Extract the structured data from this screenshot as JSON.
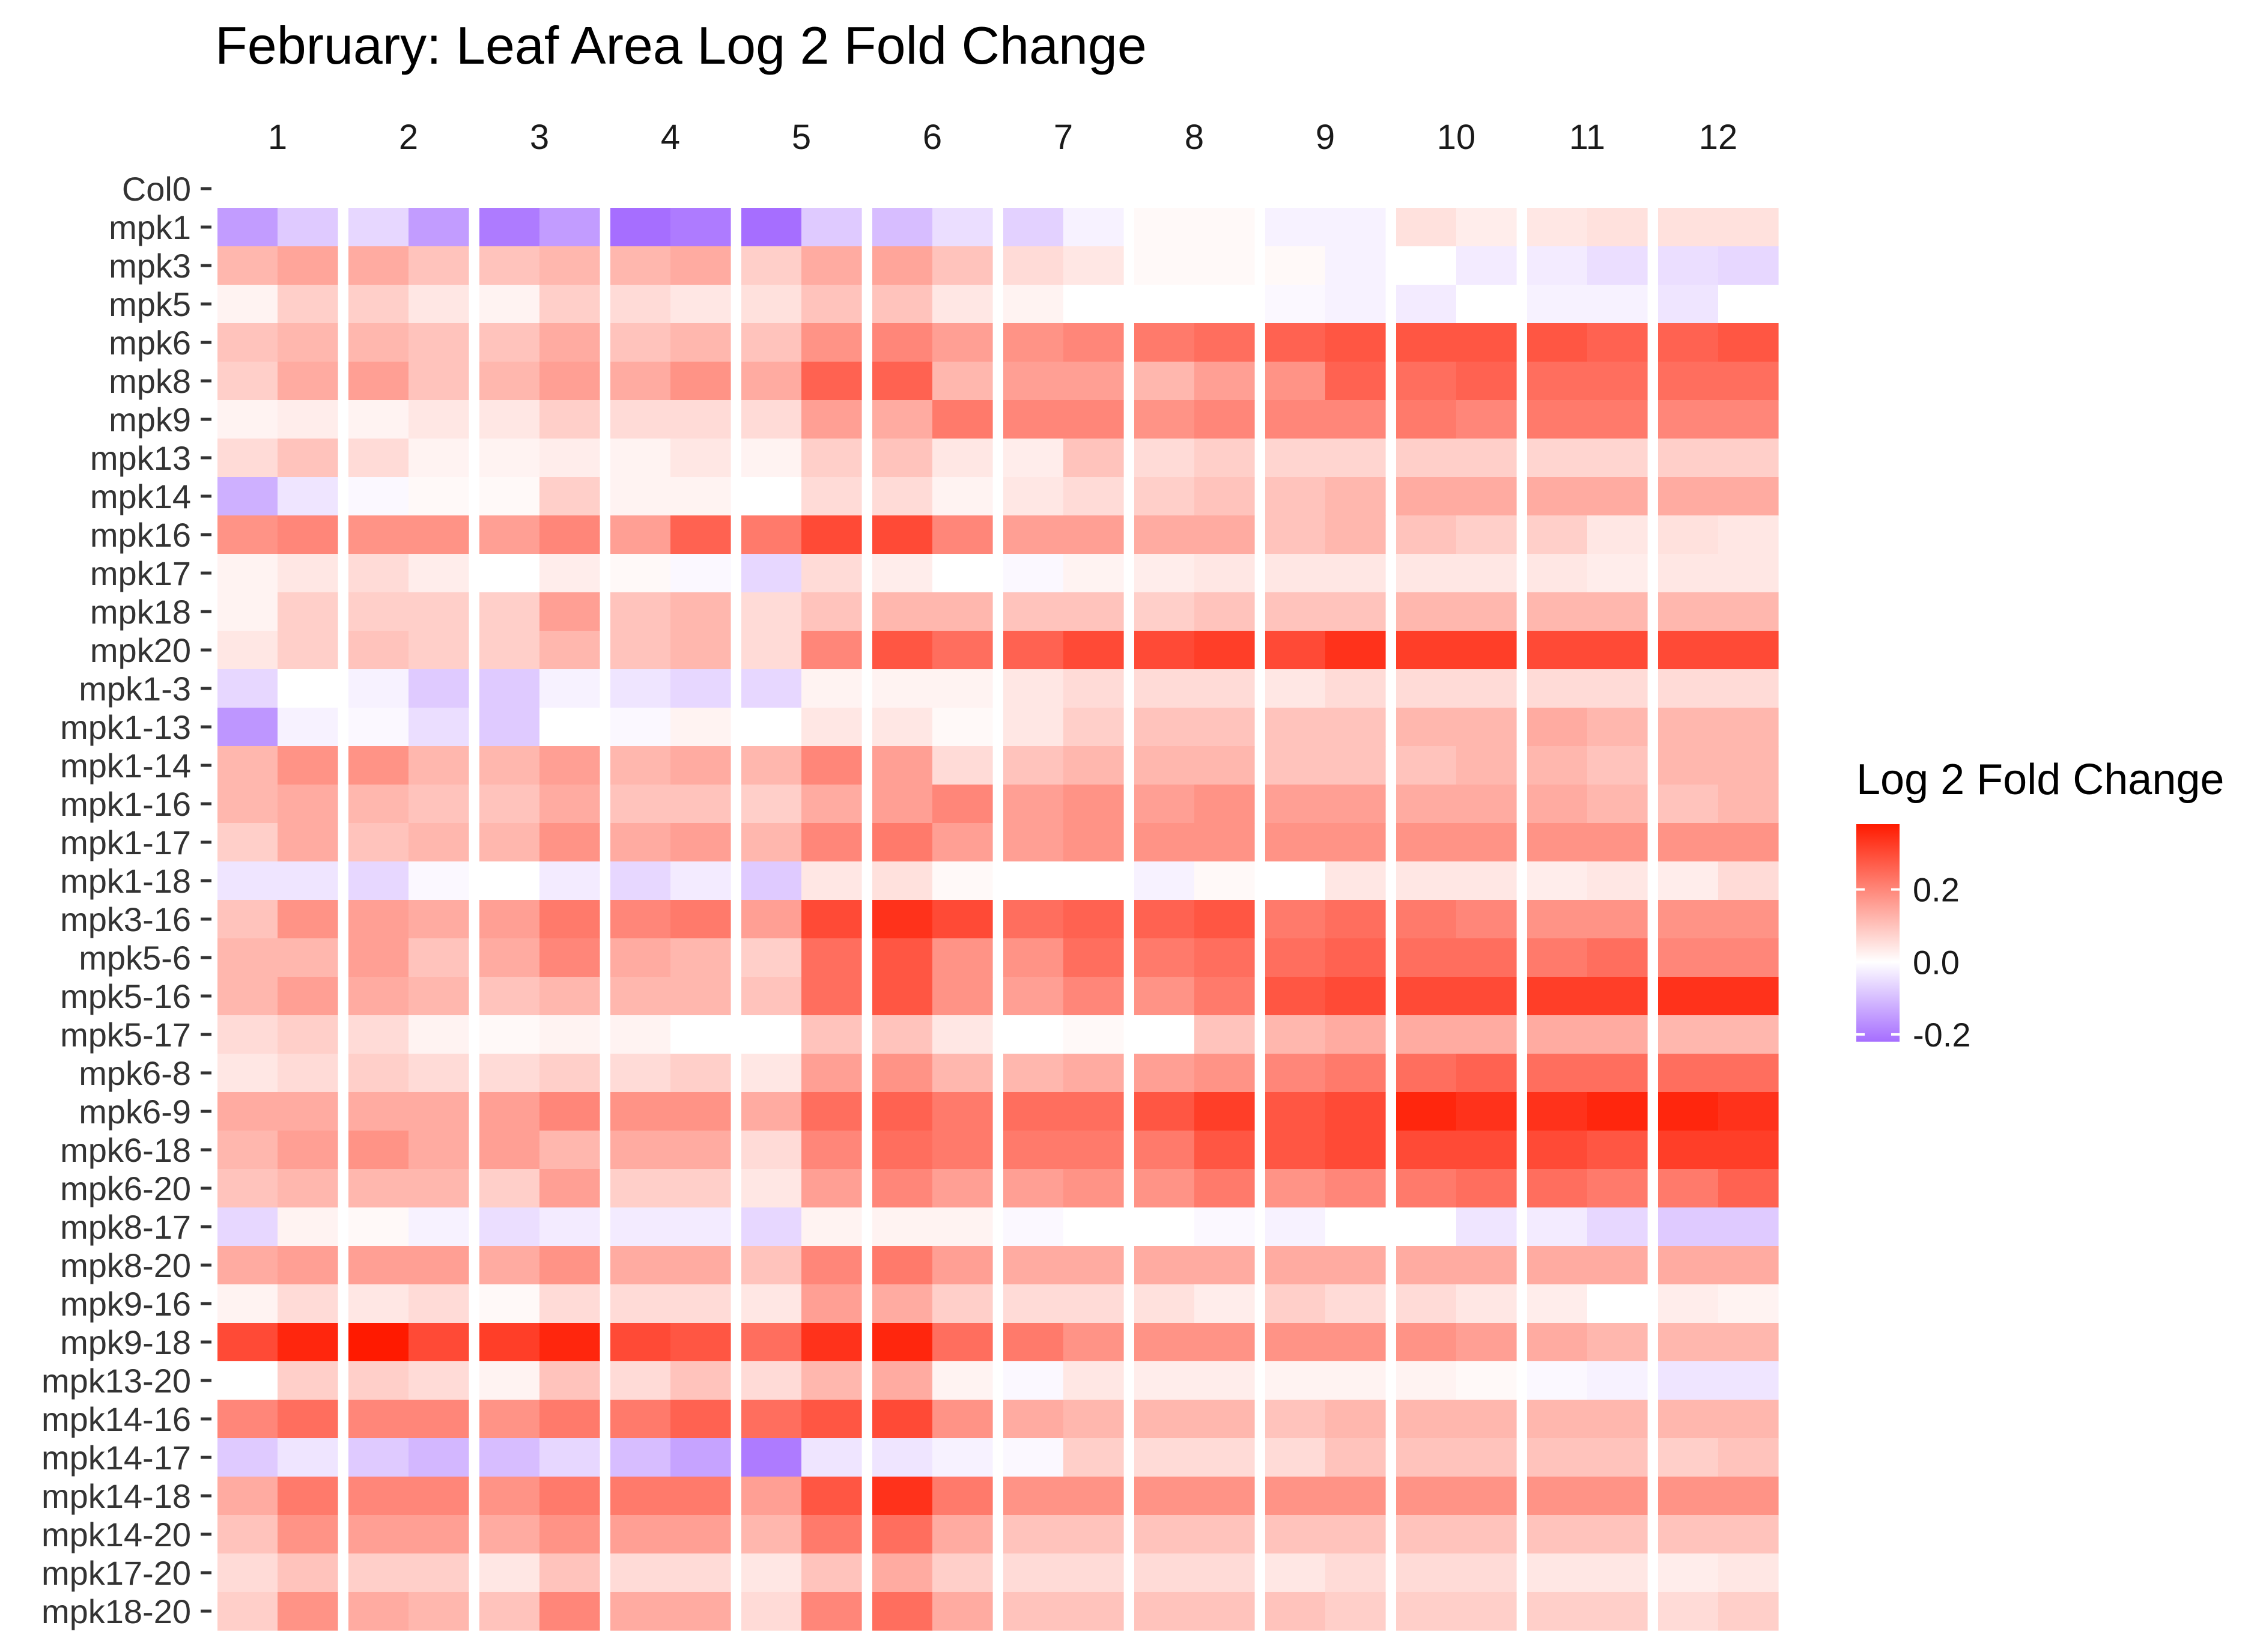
{
  "chart_data": {
    "type": "heatmap",
    "title": "February: Leaf Area Log 2 Fold Change",
    "columns": [
      "1",
      "2",
      "3",
      "4",
      "5",
      "6",
      "7",
      "8",
      "9",
      "10",
      "11",
      "12"
    ],
    "subcolumns_per_column": 2,
    "rows": [
      "Col0",
      "mpk1",
      "mpk3",
      "mpk5",
      "mpk6",
      "mpk8",
      "mpk9",
      "mpk13",
      "mpk14",
      "mpk16",
      "mpk17",
      "mpk18",
      "mpk20",
      "mpk1-3",
      "mpk1-13",
      "mpk1-14",
      "mpk1-16",
      "mpk1-17",
      "mpk1-18",
      "mpk3-16",
      "mpk5-6",
      "mpk5-16",
      "mpk5-17",
      "mpk6-8",
      "mpk6-9",
      "mpk6-18",
      "mpk6-20",
      "mpk8-17",
      "mpk8-20",
      "mpk9-16",
      "mpk9-18",
      "mpk13-20",
      "mpk14-16",
      "mpk14-17",
      "mpk14-18",
      "mpk14-20",
      "mpk17-20",
      "mpk18-20"
    ],
    "values": [
      [
        null,
        null,
        null,
        null,
        null,
        null,
        null,
        null,
        null,
        null,
        null,
        null,
        null,
        null,
        null,
        null,
        null,
        null,
        null,
        null,
        null,
        null,
        null,
        null
      ],
      [
        -0.15,
        -0.08,
        -0.06,
        -0.15,
        -0.2,
        -0.15,
        -0.22,
        -0.2,
        -0.22,
        -0.08,
        -0.1,
        -0.05,
        -0.07,
        -0.02,
        0.01,
        0.01,
        -0.02,
        -0.02,
        0.05,
        0.03,
        0.04,
        0.05,
        0.05,
        0.05
      ],
      [
        0.12,
        0.15,
        0.14,
        0.1,
        0.1,
        0.12,
        0.12,
        0.14,
        0.08,
        0.14,
        0.15,
        0.1,
        0.06,
        0.04,
        0.01,
        0.01,
        0.01,
        -0.02,
        0.0,
        -0.03,
        -0.03,
        -0.05,
        -0.05,
        -0.06
      ],
      [
        0.02,
        0.08,
        0.08,
        0.04,
        0.02,
        0.08,
        0.06,
        0.04,
        0.05,
        0.1,
        0.1,
        0.04,
        0.02,
        0.0,
        0.0,
        0.0,
        -0.01,
        -0.02,
        -0.03,
        0.0,
        -0.02,
        -0.02,
        -0.04,
        0.0
      ],
      [
        0.1,
        0.12,
        0.12,
        0.1,
        0.1,
        0.14,
        0.1,
        0.12,
        0.1,
        0.18,
        0.2,
        0.16,
        0.18,
        0.2,
        0.22,
        0.24,
        0.26,
        0.28,
        0.28,
        0.28,
        0.28,
        0.26,
        0.26,
        0.28
      ],
      [
        0.08,
        0.14,
        0.16,
        0.1,
        0.12,
        0.16,
        0.14,
        0.18,
        0.14,
        0.26,
        0.26,
        0.12,
        0.16,
        0.16,
        0.12,
        0.16,
        0.18,
        0.26,
        0.24,
        0.26,
        0.24,
        0.24,
        0.24,
        0.24
      ],
      [
        0.02,
        0.03,
        0.02,
        0.04,
        0.04,
        0.08,
        0.06,
        0.06,
        0.06,
        0.16,
        0.14,
        0.22,
        0.2,
        0.2,
        0.18,
        0.2,
        0.2,
        0.2,
        0.22,
        0.2,
        0.22,
        0.22,
        0.2,
        0.2
      ],
      [
        0.06,
        0.1,
        0.06,
        0.02,
        0.02,
        0.03,
        0.02,
        0.04,
        0.02,
        0.08,
        0.1,
        0.04,
        0.03,
        0.1,
        0.06,
        0.08,
        0.07,
        0.07,
        0.08,
        0.08,
        0.07,
        0.07,
        0.08,
        0.08
      ],
      [
        -0.12,
        -0.04,
        -0.01,
        0.01,
        0.01,
        0.08,
        0.02,
        0.02,
        0.0,
        0.06,
        0.06,
        0.02,
        0.04,
        0.06,
        0.08,
        0.1,
        0.1,
        0.12,
        0.14,
        0.14,
        0.14,
        0.14,
        0.14,
        0.14
      ],
      [
        0.18,
        0.2,
        0.18,
        0.18,
        0.16,
        0.2,
        0.16,
        0.26,
        0.22,
        0.3,
        0.3,
        0.2,
        0.16,
        0.16,
        0.14,
        0.14,
        0.1,
        0.12,
        0.1,
        0.08,
        0.08,
        0.04,
        0.05,
        0.04
      ],
      [
        0.02,
        0.04,
        0.06,
        0.03,
        0.0,
        0.03,
        0.01,
        -0.01,
        -0.06,
        0.06,
        0.03,
        0.0,
        -0.01,
        0.02,
        0.03,
        0.04,
        0.04,
        0.04,
        0.04,
        0.04,
        0.04,
        0.03,
        0.04,
        0.04
      ],
      [
        0.02,
        0.08,
        0.08,
        0.08,
        0.08,
        0.16,
        0.1,
        0.12,
        0.06,
        0.1,
        0.12,
        0.12,
        0.1,
        0.1,
        0.08,
        0.1,
        0.1,
        0.1,
        0.12,
        0.12,
        0.12,
        0.12,
        0.12,
        0.12
      ],
      [
        0.04,
        0.08,
        0.1,
        0.08,
        0.08,
        0.12,
        0.1,
        0.12,
        0.06,
        0.2,
        0.28,
        0.24,
        0.26,
        0.3,
        0.3,
        0.32,
        0.3,
        0.34,
        0.32,
        0.32,
        0.3,
        0.3,
        0.3,
        0.3
      ],
      [
        -0.06,
        0.0,
        -0.02,
        -0.08,
        -0.08,
        -0.02,
        -0.04,
        -0.06,
        -0.06,
        0.02,
        0.02,
        0.02,
        0.04,
        0.06,
        0.06,
        0.06,
        0.04,
        0.06,
        0.06,
        0.06,
        0.06,
        0.06,
        0.06,
        0.06
      ],
      [
        -0.16,
        -0.02,
        -0.01,
        -0.05,
        -0.08,
        0.0,
        -0.01,
        0.02,
        0.0,
        0.04,
        0.04,
        0.01,
        0.04,
        0.08,
        0.1,
        0.1,
        0.1,
        0.1,
        0.12,
        0.12,
        0.14,
        0.12,
        0.12,
        0.12
      ],
      [
        0.12,
        0.18,
        0.18,
        0.12,
        0.12,
        0.16,
        0.12,
        0.14,
        0.12,
        0.2,
        0.16,
        0.06,
        0.1,
        0.12,
        0.12,
        0.12,
        0.1,
        0.1,
        0.1,
        0.12,
        0.12,
        0.1,
        0.12,
        0.12
      ],
      [
        0.12,
        0.14,
        0.12,
        0.1,
        0.1,
        0.14,
        0.1,
        0.1,
        0.08,
        0.14,
        0.16,
        0.2,
        0.16,
        0.18,
        0.16,
        0.18,
        0.16,
        0.16,
        0.14,
        0.14,
        0.14,
        0.12,
        0.1,
        0.12
      ],
      [
        0.08,
        0.14,
        0.1,
        0.12,
        0.12,
        0.18,
        0.14,
        0.16,
        0.12,
        0.2,
        0.22,
        0.16,
        0.16,
        0.18,
        0.18,
        0.18,
        0.18,
        0.18,
        0.18,
        0.18,
        0.18,
        0.18,
        0.18,
        0.18
      ],
      [
        -0.04,
        -0.04,
        -0.06,
        -0.01,
        0.0,
        -0.03,
        -0.06,
        -0.03,
        -0.08,
        0.04,
        0.05,
        0.01,
        0.0,
        0.0,
        -0.02,
        0.01,
        0.0,
        0.04,
        0.04,
        0.04,
        0.03,
        0.04,
        0.03,
        0.06
      ],
      [
        0.1,
        0.18,
        0.16,
        0.14,
        0.16,
        0.22,
        0.2,
        0.22,
        0.16,
        0.3,
        0.34,
        0.3,
        0.24,
        0.26,
        0.26,
        0.28,
        0.22,
        0.24,
        0.22,
        0.2,
        0.18,
        0.18,
        0.18,
        0.18
      ],
      [
        0.12,
        0.12,
        0.16,
        0.1,
        0.14,
        0.2,
        0.14,
        0.12,
        0.08,
        0.24,
        0.28,
        0.18,
        0.18,
        0.24,
        0.22,
        0.24,
        0.24,
        0.26,
        0.24,
        0.24,
        0.22,
        0.24,
        0.2,
        0.2
      ],
      [
        0.12,
        0.16,
        0.14,
        0.12,
        0.1,
        0.12,
        0.12,
        0.12,
        0.1,
        0.24,
        0.28,
        0.18,
        0.16,
        0.2,
        0.18,
        0.22,
        0.28,
        0.3,
        0.3,
        0.3,
        0.32,
        0.32,
        0.34,
        0.34
      ],
      [
        0.06,
        0.08,
        0.06,
        0.02,
        0.01,
        0.02,
        0.02,
        0.0,
        0.0,
        0.1,
        0.1,
        0.04,
        0.0,
        0.01,
        0.0,
        0.1,
        0.12,
        0.14,
        0.14,
        0.14,
        0.14,
        0.14,
        0.12,
        0.12
      ],
      [
        0.04,
        0.06,
        0.08,
        0.06,
        0.06,
        0.08,
        0.06,
        0.08,
        0.04,
        0.16,
        0.18,
        0.12,
        0.12,
        0.14,
        0.16,
        0.18,
        0.2,
        0.22,
        0.24,
        0.26,
        0.24,
        0.24,
        0.24,
        0.24
      ],
      [
        0.14,
        0.14,
        0.14,
        0.14,
        0.16,
        0.2,
        0.18,
        0.18,
        0.14,
        0.24,
        0.26,
        0.22,
        0.24,
        0.24,
        0.28,
        0.32,
        0.28,
        0.3,
        0.36,
        0.34,
        0.34,
        0.36,
        0.36,
        0.34
      ],
      [
        0.12,
        0.16,
        0.18,
        0.14,
        0.16,
        0.12,
        0.14,
        0.14,
        0.06,
        0.2,
        0.24,
        0.22,
        0.22,
        0.22,
        0.22,
        0.28,
        0.28,
        0.3,
        0.3,
        0.3,
        0.3,
        0.28,
        0.32,
        0.32
      ],
      [
        0.1,
        0.12,
        0.12,
        0.12,
        0.08,
        0.16,
        0.08,
        0.08,
        0.04,
        0.16,
        0.2,
        0.16,
        0.16,
        0.18,
        0.18,
        0.22,
        0.18,
        0.2,
        0.22,
        0.24,
        0.24,
        0.22,
        0.22,
        0.26
      ],
      [
        -0.06,
        0.02,
        0.01,
        -0.02,
        -0.05,
        -0.03,
        -0.03,
        -0.03,
        -0.06,
        0.02,
        0.02,
        0.02,
        -0.01,
        0.0,
        0.0,
        -0.01,
        -0.02,
        0.0,
        0.0,
        -0.04,
        -0.03,
        -0.06,
        -0.08,
        -0.08
      ],
      [
        0.14,
        0.16,
        0.16,
        0.16,
        0.14,
        0.18,
        0.14,
        0.14,
        0.1,
        0.2,
        0.22,
        0.16,
        0.14,
        0.14,
        0.14,
        0.14,
        0.14,
        0.14,
        0.14,
        0.14,
        0.14,
        0.14,
        0.14,
        0.14
      ],
      [
        0.02,
        0.06,
        0.04,
        0.06,
        0.01,
        0.06,
        0.06,
        0.06,
        0.04,
        0.16,
        0.14,
        0.08,
        0.06,
        0.06,
        0.05,
        0.03,
        0.08,
        0.06,
        0.06,
        0.04,
        0.03,
        0.0,
        0.03,
        0.02
      ],
      [
        0.3,
        0.36,
        0.38,
        0.3,
        0.32,
        0.36,
        0.3,
        0.28,
        0.24,
        0.34,
        0.36,
        0.24,
        0.22,
        0.18,
        0.18,
        0.18,
        0.18,
        0.18,
        0.18,
        0.16,
        0.14,
        0.12,
        0.12,
        0.12
      ],
      [
        0.0,
        0.08,
        0.08,
        0.06,
        0.02,
        0.1,
        0.06,
        0.1,
        0.06,
        0.12,
        0.14,
        0.02,
        -0.01,
        0.04,
        0.03,
        0.03,
        0.02,
        0.02,
        0.02,
        0.01,
        -0.01,
        -0.02,
        -0.04,
        -0.04
      ],
      [
        0.2,
        0.24,
        0.2,
        0.2,
        0.18,
        0.22,
        0.22,
        0.26,
        0.24,
        0.28,
        0.3,
        0.18,
        0.14,
        0.12,
        0.12,
        0.12,
        0.1,
        0.12,
        0.12,
        0.12,
        0.12,
        0.12,
        0.12,
        0.12
      ],
      [
        -0.08,
        -0.04,
        -0.08,
        -0.11,
        -0.1,
        -0.06,
        -0.1,
        -0.14,
        -0.2,
        -0.04,
        -0.04,
        -0.02,
        -0.01,
        0.08,
        0.06,
        0.06,
        0.06,
        0.1,
        0.1,
        0.1,
        0.1,
        0.1,
        0.08,
        0.1
      ],
      [
        0.14,
        0.22,
        0.2,
        0.2,
        0.18,
        0.22,
        0.22,
        0.22,
        0.16,
        0.28,
        0.34,
        0.22,
        0.18,
        0.18,
        0.18,
        0.18,
        0.18,
        0.18,
        0.18,
        0.18,
        0.18,
        0.18,
        0.18,
        0.18
      ],
      [
        0.1,
        0.18,
        0.16,
        0.16,
        0.14,
        0.18,
        0.16,
        0.16,
        0.12,
        0.22,
        0.24,
        0.14,
        0.1,
        0.1,
        0.1,
        0.1,
        0.1,
        0.1,
        0.1,
        0.1,
        0.1,
        0.1,
        0.1,
        0.1
      ],
      [
        0.06,
        0.1,
        0.08,
        0.08,
        0.04,
        0.1,
        0.06,
        0.06,
        0.04,
        0.1,
        0.14,
        0.08,
        0.06,
        0.06,
        0.06,
        0.06,
        0.04,
        0.06,
        0.06,
        0.06,
        0.04,
        0.04,
        0.03,
        0.04
      ],
      [
        0.08,
        0.18,
        0.14,
        0.12,
        0.1,
        0.2,
        0.14,
        0.14,
        0.06,
        0.2,
        0.24,
        0.14,
        0.1,
        0.1,
        0.1,
        0.1,
        0.1,
        0.08,
        0.08,
        0.08,
        0.08,
        0.08,
        0.06,
        0.08
      ]
    ],
    "legend": {
      "title": "Log 2 Fold Change",
      "ticks": [
        {
          "value": 0.2,
          "label": "0.2"
        },
        {
          "value": 0.0,
          "label": "0.0"
        },
        {
          "value": -0.2,
          "label": "-0.2"
        }
      ],
      "range": [
        -0.22,
        0.38
      ],
      "placement": "right"
    },
    "colors": {
      "low": "#a66eff",
      "mid": "#ffffff",
      "high": "#ff1a00"
    },
    "grid": false
  }
}
